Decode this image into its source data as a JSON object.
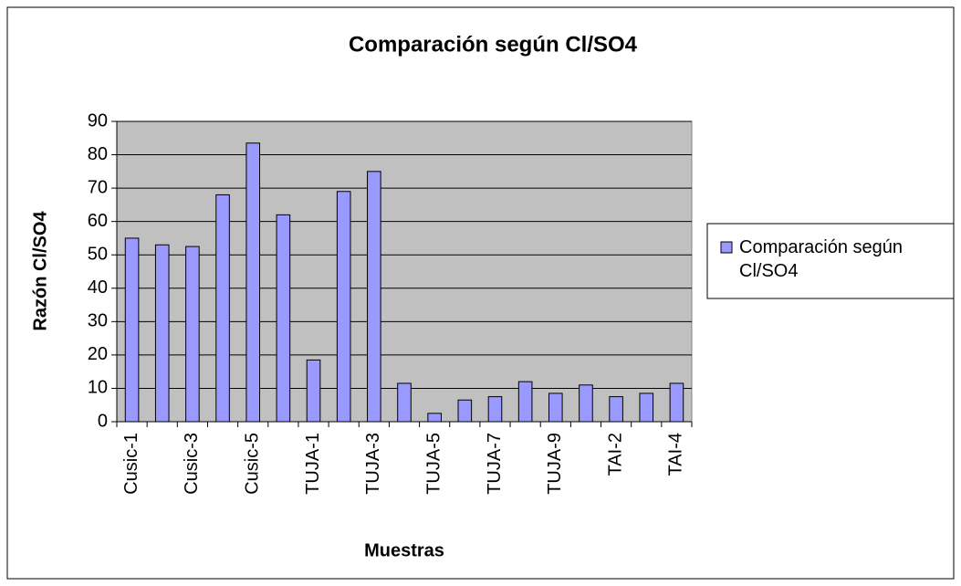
{
  "chart_data": {
    "type": "bar",
    "title": "Comparación según Cl/SO4",
    "x_label": "Muestras",
    "y_label": "Razón Cl/SO4",
    "categories": [
      "Cusic-1",
      null,
      "Cusic-3",
      null,
      "Cusic-5",
      null,
      "TUJA-1",
      null,
      "TUJA-3",
      null,
      "TUJA-5",
      null,
      "TUJA-7",
      null,
      "TUJA-9",
      null,
      "TAI-2",
      null,
      "TAI-4"
    ],
    "series": [
      {
        "name": "Comparación según Cl/SO4",
        "color": "#9999ff",
        "values": [
          55,
          53,
          52.5,
          68,
          83.5,
          62,
          18.5,
          69,
          75,
          11.5,
          2.5,
          6.5,
          7.5,
          12,
          8.5,
          11,
          7.5,
          8.5,
          11.5
        ]
      }
    ],
    "ylim": [
      0,
      90
    ],
    "yticks": [
      0,
      10,
      20,
      30,
      40,
      50,
      60,
      70,
      80,
      90
    ],
    "grid": true,
    "legend": "right"
  }
}
